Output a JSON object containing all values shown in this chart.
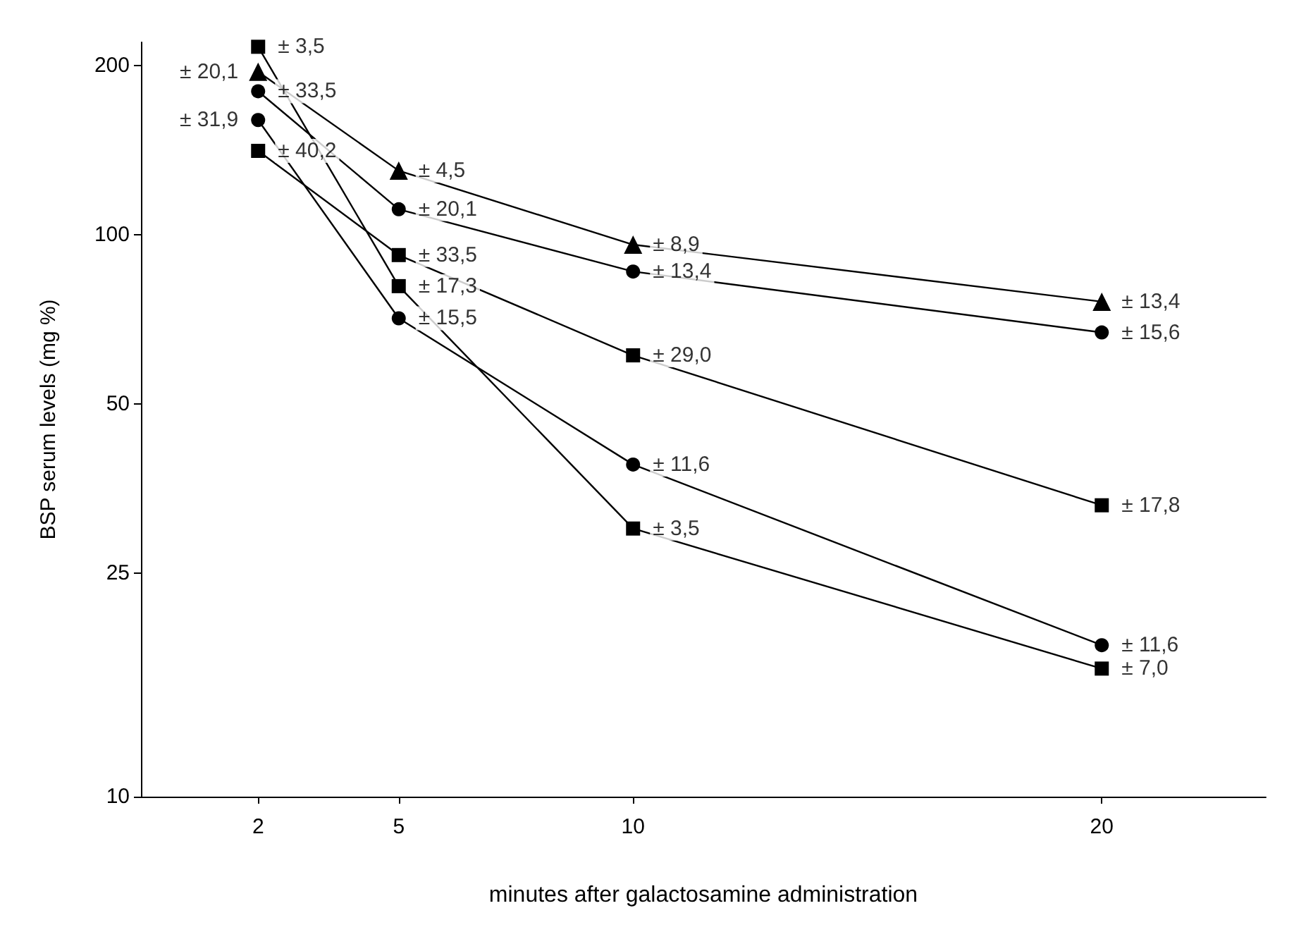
{
  "chart_data": {
    "type": "line",
    "xlabel": "minutes after galactosamine administration",
    "ylabel": "BSP serum levels (mg %)",
    "log": "y",
    "grid": false,
    "line_style": "solid",
    "x": [
      2,
      5,
      10,
      20
    ],
    "xlim": [
      -0.5,
      23.5
    ],
    "xticks": [
      2,
      5,
      10,
      20
    ],
    "ylim": [
      10,
      220
    ],
    "yticks": [
      10,
      25,
      50,
      100,
      200
    ],
    "series": [
      {
        "color": "#000000",
        "marker": "square",
        "values": [
          216,
          81,
          30,
          16.9
        ]
      },
      {
        "color": "#000000",
        "marker": "triangle",
        "values": [
          195,
          130,
          96,
          76
        ]
      },
      {
        "color": "#000000",
        "marker": "circle",
        "values": [
          180,
          111,
          86,
          67
        ]
      },
      {
        "color": "#000000",
        "marker": "circle",
        "values": [
          160,
          71,
          39,
          18.6
        ]
      },
      {
        "color": "#000000",
        "marker": "square",
        "values": [
          141,
          92,
          61,
          33
        ]
      }
    ],
    "annotations": [
      {
        "text": "± 3,5",
        "x": 2,
        "y": 216
      },
      {
        "text": "± 20,1",
        "x": 2,
        "y": 195
      },
      {
        "text": "± 33,5",
        "x": 2,
        "y": 180
      },
      {
        "text": "± 31,9",
        "x": 2,
        "y": 160
      },
      {
        "text": "± 40,2",
        "x": 2,
        "y": 141
      },
      {
        "text": "± 4,5",
        "x": 5,
        "y": 130
      },
      {
        "text": "± 20,1",
        "x": 5,
        "y": 111
      },
      {
        "text": "± 33,5",
        "x": 5,
        "y": 92
      },
      {
        "text": "± 17,3",
        "x": 5,
        "y": 81
      },
      {
        "text": "± 15,5",
        "x": 5,
        "y": 71
      },
      {
        "text": "± 8,9",
        "x": 10,
        "y": 96
      },
      {
        "text": "± 13,4",
        "x": 10,
        "y": 86
      },
      {
        "text": "± 29,0",
        "x": 10,
        "y": 61
      },
      {
        "text": "± 11,6",
        "x": 10,
        "y": 39
      },
      {
        "text": "± 3,5",
        "x": 10,
        "y": 30
      },
      {
        "text": "± 13,4",
        "x": 20,
        "y": 76
      },
      {
        "text": "± 15,6",
        "x": 20,
        "y": 67
      },
      {
        "text": "± 17,8",
        "x": 20,
        "y": 33
      },
      {
        "text": "± 11,6",
        "x": 20,
        "y": 18.6
      },
      {
        "text": "± 7,0",
        "x": 20,
        "y": 16.9
      }
    ]
  }
}
